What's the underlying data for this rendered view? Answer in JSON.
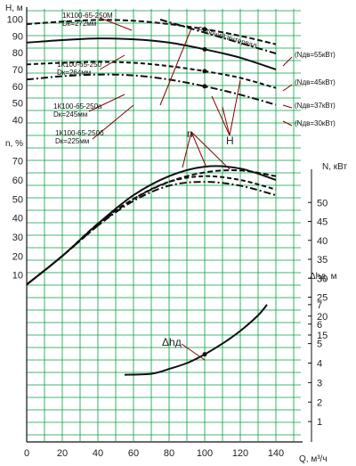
{
  "chart_data": {
    "type": "line",
    "title": "",
    "xlabel": "Q, м³/ч",
    "x_ticks": [
      0,
      20,
      40,
      60,
      80,
      100,
      120,
      140
    ],
    "xlim": [
      0,
      150
    ],
    "head_panel": {
      "ylabel": "H, м",
      "y_ticks": [
        40,
        50,
        60,
        70,
        80,
        90,
        100
      ],
      "ylim": [
        35,
        105
      ],
      "series": [
        {
          "name": "1К100-65-250М",
          "note": "Dк=272мм",
          "power_label": "(Nдв=55кВт)",
          "dash": "6,3",
          "x": [
            0,
            20,
            40,
            60,
            80,
            100,
            120,
            140
          ],
          "y": [
            97,
            98.5,
            99.5,
            99,
            97,
            94,
            90,
            85
          ]
        },
        {
          "name": "1К100-65-250",
          "note": "Dк=264мм",
          "power_label": "(Nдв=45кВт)",
          "dash": "",
          "x": [
            0,
            20,
            40,
            60,
            80,
            100,
            120,
            140
          ],
          "y": [
            86,
            87.5,
            88.5,
            88,
            86,
            82,
            77,
            70
          ]
        },
        {
          "name": "1К100-65-250а",
          "note": "Dк=245мм",
          "power_label": "(Nдв=37кВт)",
          "dash": "5,3",
          "x": [
            0,
            20,
            40,
            60,
            80,
            100,
            120,
            140
          ],
          "y": [
            73,
            74,
            74.5,
            74,
            72,
            69,
            65,
            59
          ]
        },
        {
          "name": "1К100-65-250б",
          "note": "Dк=225мм",
          "power_label": "(Nдв=30кВт)",
          "dash": "8,3,2,3",
          "x": [
            0,
            20,
            40,
            60,
            80,
            100,
            120,
            140
          ],
          "y": [
            64,
            66,
            67,
            66.5,
            64,
            60,
            55,
            49
          ]
        }
      ],
      "annotations": {
        "work_interval": "Рабочий интервал",
        "head_marker": "H"
      }
    },
    "efficiency_panel": {
      "ylabel": "n, %",
      "y_ticks": [
        10,
        20,
        30,
        40,
        50,
        60,
        70
      ],
      "ylim": [
        0,
        75
      ],
      "marker": "n",
      "series": [
        {
          "name": "1К100-65-250М",
          "dash": "6,3",
          "x": [
            0,
            20,
            40,
            60,
            80,
            100,
            120,
            140
          ],
          "y": [
            5,
            20,
            37,
            50,
            59,
            64,
            65,
            62
          ]
        },
        {
          "name": "1К100-65-250",
          "dash": "",
          "x": [
            0,
            20,
            40,
            60,
            80,
            100,
            120,
            140
          ],
          "y": [
            5,
            20,
            37,
            52,
            62,
            67,
            66,
            60
          ]
        },
        {
          "name": "1К100-65-250а",
          "dash": "5,3",
          "x": [
            0,
            20,
            40,
            60,
            80,
            100,
            120,
            140
          ],
          "y": [
            5,
            20,
            36,
            50,
            59,
            62,
            60,
            55
          ]
        },
        {
          "name": "1К100-65-250б",
          "dash": "8,3,2,3",
          "x": [
            0,
            20,
            40,
            60,
            80,
            100,
            120,
            140
          ],
          "y": [
            5,
            20,
            36,
            49,
            57,
            59,
            57,
            52
          ]
        }
      ]
    },
    "power_axis": {
      "ylabel": "N, кВт",
      "y_ticks": [
        15,
        20,
        25,
        30,
        35,
        40,
        45,
        50
      ]
    },
    "npsh_panel": {
      "ylabel": "Δhд, м",
      "y_ticks": [
        1,
        2,
        3,
        4,
        5,
        6,
        7
      ],
      "ylim": [
        0,
        8
      ],
      "marker": "Δhд",
      "series": [
        {
          "name": "Δhд",
          "dash": "",
          "x": [
            55,
            70,
            80,
            90,
            100,
            110,
            120,
            130,
            135
          ],
          "y": [
            3.4,
            3.45,
            3.7,
            4.0,
            4.45,
            5.0,
            5.65,
            6.45,
            7.0
          ]
        }
      ]
    }
  }
}
